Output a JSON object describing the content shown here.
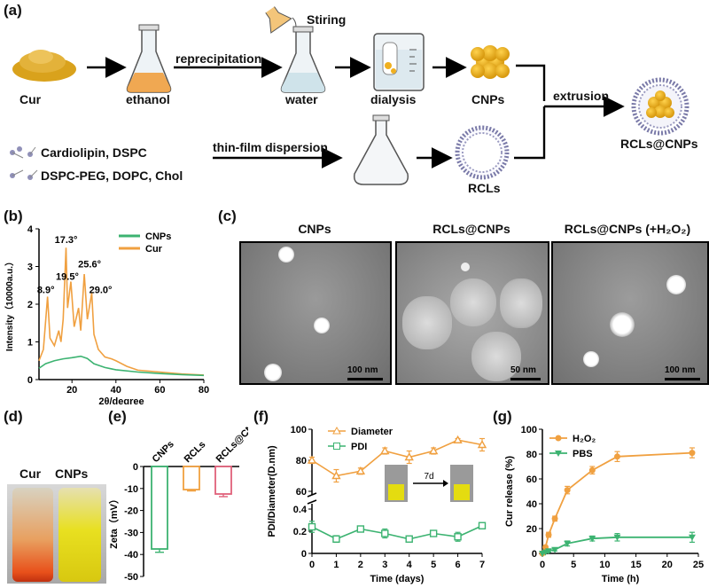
{
  "panels": {
    "a": "(a)",
    "b": "(b)",
    "c": "(c)",
    "d": "(d)",
    "e": "(e)",
    "f": "(f)",
    "g": "(g)"
  },
  "scheme": {
    "cur": "Cur",
    "ethanol": "ethanol",
    "reprecipitation": "reprecipitation",
    "stiring": "Stiring",
    "water": "water",
    "dialysis": "dialysis",
    "cnps": "CNPs",
    "extrusion": "extrusion",
    "rcls_cnps": "RCLs@CNPs",
    "lipids1": "Cardiolipin, DSPC",
    "lipids2": "DSPC-PEG, DOPC, Chol",
    "thinfilm": "thin-film dispersion",
    "rcls": "RCLs"
  },
  "tem": {
    "titles": [
      "CNPs",
      "RCLs@CNPs",
      "RCLs@CNPs (+H₂O₂)"
    ],
    "scales": [
      "100 nm",
      "50 nm",
      "100 nm"
    ]
  },
  "vials": {
    "left": "Cur",
    "right": "CNPs"
  },
  "chart_data": [
    {
      "panel": "b",
      "type": "line",
      "xlabel": "2θ/degree",
      "ylabel": "Intensity（10000a.u.）",
      "xlim": [
        5,
        80
      ],
      "ylim": [
        0,
        4
      ],
      "xticks": [
        20,
        40,
        60,
        80
      ],
      "yticks": [
        0,
        1,
        2,
        3,
        4
      ],
      "series": [
        {
          "name": "CNPs",
          "color": "#3cb371",
          "x": [
            5,
            8,
            12,
            16,
            20,
            24,
            27,
            30,
            35,
            40,
            50,
            60,
            70,
            80
          ],
          "y": [
            0.3,
            0.42,
            0.5,
            0.55,
            0.58,
            0.62,
            0.56,
            0.42,
            0.32,
            0.26,
            0.2,
            0.16,
            0.13,
            0.11
          ]
        },
        {
          "name": "Cur",
          "color": "#f0a040",
          "x": [
            5,
            7,
            8.9,
            10,
            12,
            14,
            15,
            16,
            17.3,
            18,
            19.5,
            21,
            23,
            24,
            25.6,
            27,
            29,
            30,
            32,
            35,
            38,
            40,
            45,
            50,
            60,
            70,
            80
          ],
          "y": [
            0.5,
            0.8,
            2.2,
            1.1,
            0.9,
            1.3,
            1.0,
            1.6,
            3.5,
            1.9,
            2.6,
            1.4,
            1.9,
            1.3,
            2.8,
            1.6,
            2.3,
            1.2,
            0.8,
            0.6,
            0.55,
            0.5,
            0.35,
            0.25,
            0.2,
            0.15,
            0.12
          ]
        }
      ],
      "annotations": [
        "17.3°",
        "25.6°",
        "19.5°",
        "8.9°",
        "29.0°"
      ]
    },
    {
      "panel": "e",
      "type": "bar",
      "ylabel": "Zeta（mV）",
      "ylim": [
        -50,
        0
      ],
      "yticks": [
        0,
        -10,
        -20,
        -30,
        -40,
        -50
      ],
      "categories": [
        "CNPs",
        "RCLs",
        "RCLs@CNPs"
      ],
      "values": [
        -37.5,
        -10.5,
        -12.5
      ],
      "errors": [
        1.5,
        0.6,
        1.2
      ],
      "colors": [
        "#3cb371",
        "#f0a040",
        "#e0607a"
      ]
    },
    {
      "panel": "f",
      "type": "line",
      "xlabel": "Time (days)",
      "ylabel": "PDI/Diameter(D.nm)",
      "xlim": [
        0,
        7
      ],
      "xticks": [
        0,
        1,
        2,
        3,
        4,
        5,
        6,
        7
      ],
      "yticks_upper": [
        60,
        80,
        100
      ],
      "yticks_lower": [
        0,
        0.2,
        0.4
      ],
      "series": [
        {
          "name": "Diameter",
          "color": "#f0a040",
          "x": [
            0,
            1,
            2,
            3,
            4,
            5,
            6,
            7
          ],
          "y": [
            80,
            70,
            73,
            86,
            82,
            86,
            93,
            90
          ],
          "err": [
            2,
            4,
            2,
            2,
            4,
            2,
            1,
            4
          ]
        },
        {
          "name": "PDI",
          "color": "#3cb371",
          "x": [
            0,
            1,
            2,
            3,
            4,
            5,
            6,
            7
          ],
          "y": [
            0.24,
            0.13,
            0.22,
            0.18,
            0.13,
            0.18,
            0.15,
            0.25
          ],
          "err": [
            0.05,
            0.03,
            0.01,
            0.04,
            0.02,
            0.02,
            0.04,
            0.02
          ]
        }
      ],
      "inset_label": "7d"
    },
    {
      "panel": "g",
      "type": "line",
      "xlabel": "Time (h)",
      "ylabel": "Cur release (%)",
      "xlim": [
        0,
        25
      ],
      "ylim": [
        0,
        100
      ],
      "xticks": [
        0,
        5,
        10,
        15,
        20,
        25
      ],
      "yticks": [
        0,
        20,
        40,
        60,
        80,
        100
      ],
      "series": [
        {
          "name": "H₂O₂",
          "color": "#f0a040",
          "x": [
            0,
            0.5,
            1,
            2,
            4,
            8,
            12,
            24
          ],
          "y": [
            0,
            5,
            15,
            28,
            51,
            67,
            78,
            81
          ],
          "err": [
            0,
            1,
            2,
            2,
            3,
            3,
            4,
            4
          ]
        },
        {
          "name": "PBS",
          "color": "#3cb371",
          "x": [
            0,
            0.5,
            1,
            2,
            4,
            8,
            12,
            24
          ],
          "y": [
            0,
            1,
            2,
            3,
            8,
            12,
            13,
            13
          ],
          "err": [
            0,
            0.5,
            1,
            1,
            2,
            2,
            3,
            4
          ]
        }
      ]
    }
  ]
}
